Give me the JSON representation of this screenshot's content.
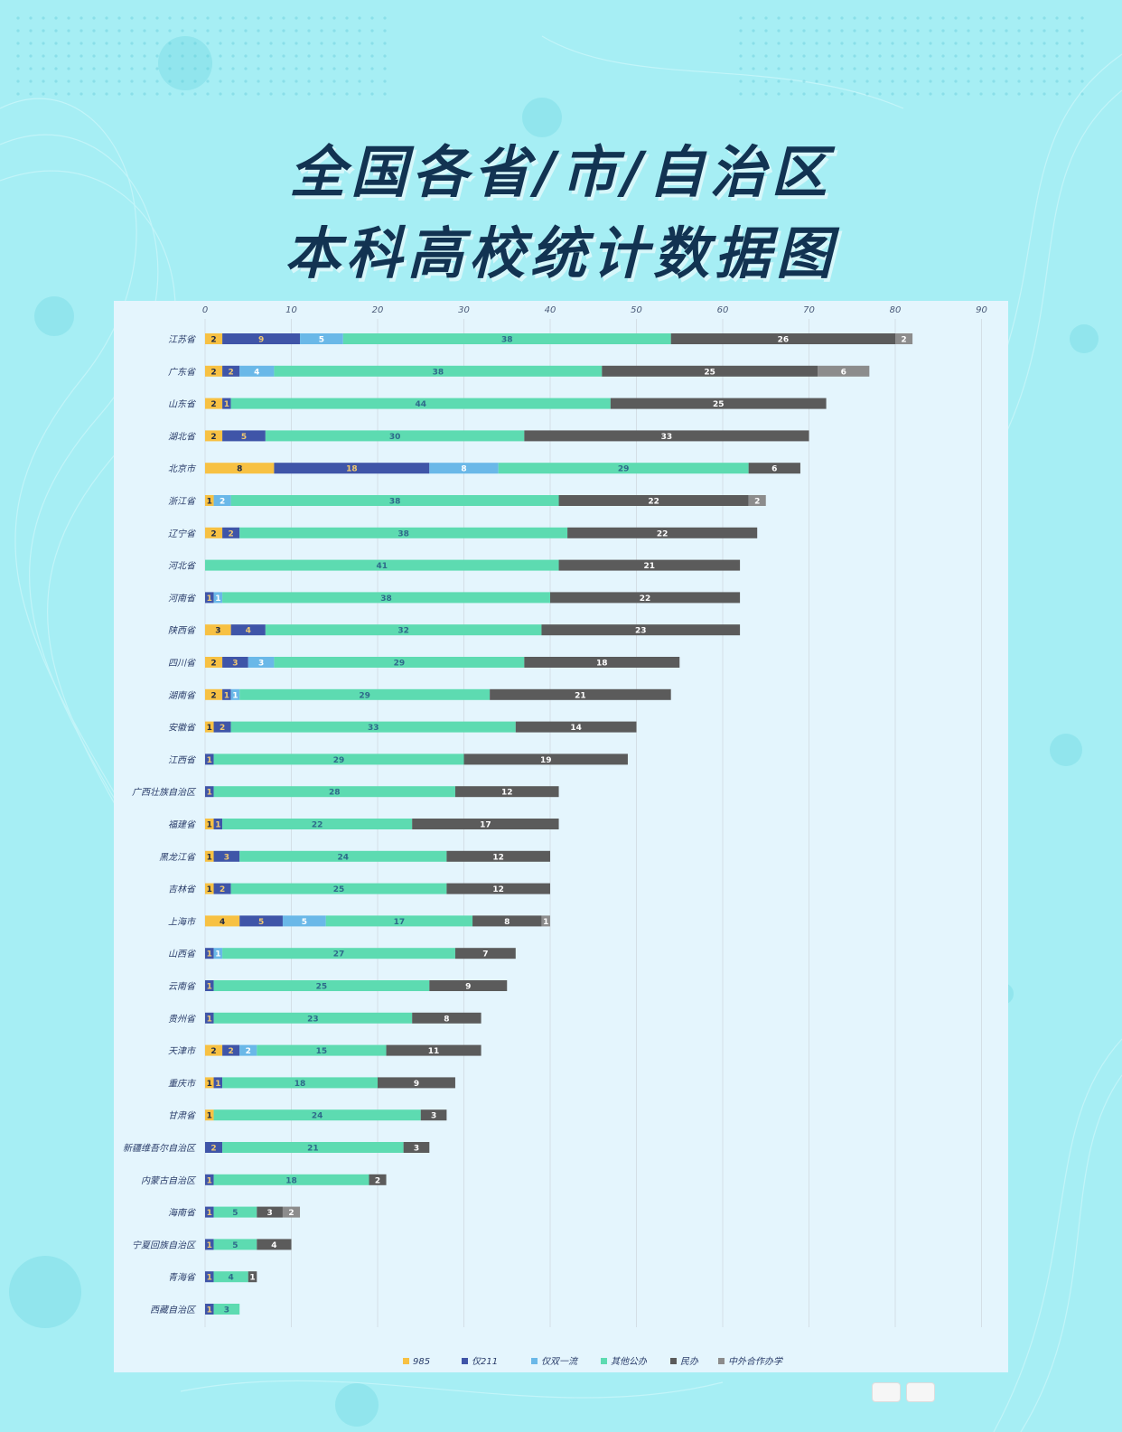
{
  "title_line1": "全国各省/市/自治区",
  "title_line2": "本科高校统计数据图",
  "colors": {
    "background": "#a6eef4",
    "panel": "#e4f5fd",
    "title": "#123352",
    "985": "#f7c143",
    "仅211": "#3f55a8",
    "仅双一流": "#6ab8e8",
    "其他公办": "#5ddbb1",
    "民办": "#5b5b5b",
    "中外合作办学": "#8c8c8c"
  },
  "chart_data": {
    "type": "bar",
    "orientation": "horizontal",
    "stacked": true,
    "xlim": [
      0,
      90
    ],
    "x_ticks": [
      0,
      10,
      20,
      30,
      40,
      50,
      60,
      70,
      80,
      90
    ],
    "grid": true,
    "legend_position": "bottom",
    "categories": [
      "江苏省",
      "广东省",
      "山东省",
      "湖北省",
      "北京市",
      "浙江省",
      "辽宁省",
      "河北省",
      "河南省",
      "陕西省",
      "四川省",
      "湖南省",
      "安徽省",
      "江西省",
      "广西壮族自治区",
      "福建省",
      "黑龙江省",
      "吉林省",
      "上海市",
      "山西省",
      "云南省",
      "贵州省",
      "天津市",
      "重庆市",
      "甘肃省",
      "新疆维吾尔自治区",
      "内蒙古自治区",
      "海南省",
      "宁夏回族自治区",
      "青海省",
      "西藏自治区"
    ],
    "series": [
      {
        "name": "985",
        "values": [
          2,
          2,
          2,
          2,
          8,
          1,
          2,
          0,
          0,
          3,
          2,
          2,
          1,
          0,
          0,
          1,
          1,
          1,
          4,
          0,
          0,
          0,
          2,
          1,
          1,
          0,
          0,
          0,
          0,
          0,
          0
        ]
      },
      {
        "name": "仅211",
        "values": [
          9,
          2,
          1,
          5,
          18,
          0,
          2,
          0,
          1,
          4,
          3,
          1,
          2,
          1,
          1,
          1,
          3,
          2,
          5,
          1,
          1,
          1,
          2,
          1,
          0,
          2,
          1,
          1,
          1,
          1,
          1
        ]
      },
      {
        "name": "仅双一流",
        "values": [
          5,
          4,
          0,
          0,
          8,
          2,
          0,
          0,
          1,
          0,
          3,
          1,
          0,
          0,
          0,
          0,
          0,
          0,
          5,
          1,
          0,
          0,
          2,
          0,
          0,
          0,
          0,
          0,
          0,
          0,
          0
        ]
      },
      {
        "name": "其他公办",
        "values": [
          38,
          38,
          44,
          30,
          29,
          38,
          38,
          41,
          38,
          32,
          29,
          29,
          33,
          29,
          28,
          22,
          24,
          25,
          17,
          27,
          25,
          23,
          15,
          18,
          24,
          21,
          18,
          5,
          5,
          4,
          3
        ]
      },
      {
        "name": "民办",
        "values": [
          26,
          25,
          25,
          33,
          6,
          22,
          22,
          21,
          22,
          23,
          18,
          21,
          14,
          19,
          12,
          17,
          12,
          12,
          8,
          7,
          9,
          8,
          11,
          9,
          3,
          3,
          2,
          3,
          4,
          1,
          0
        ]
      },
      {
        "name": "中外合作办学",
        "values": [
          2,
          6,
          0,
          0,
          0,
          2,
          0,
          0,
          0,
          0,
          0,
          0,
          0,
          0,
          0,
          0,
          0,
          0,
          1,
          0,
          0,
          0,
          0,
          0,
          0,
          0,
          0,
          2,
          0,
          0,
          0
        ]
      }
    ]
  }
}
